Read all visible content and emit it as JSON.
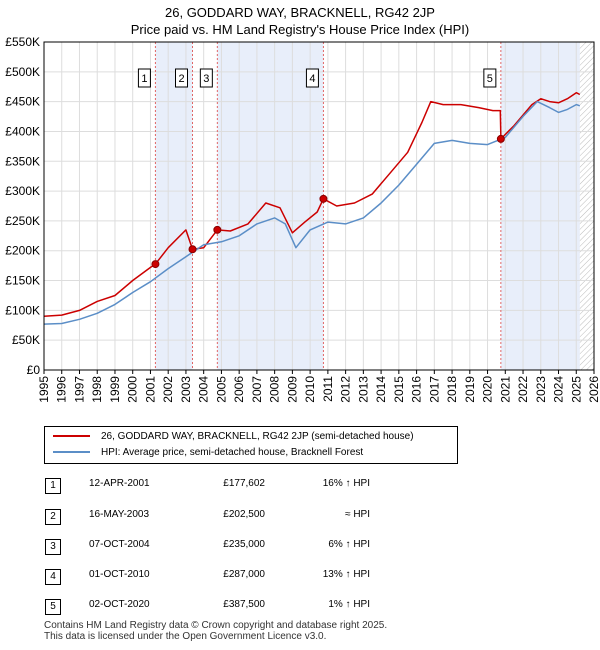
{
  "title_line1": "26, GODDARD WAY, BRACKNELL, RG42 2JP",
  "title_line2": "Price paid vs. HM Land Registry's House Price Index (HPI)",
  "colors": {
    "property": "#cc0000",
    "hpi": "#5b8ec7",
    "shade": "#e8eefa",
    "grid": "#dddddd"
  },
  "chart_data": {
    "type": "line",
    "xlim": [
      1995,
      2026
    ],
    "ylim": [
      0,
      550000
    ],
    "y_ticks": [
      0,
      50000,
      100000,
      150000,
      200000,
      250000,
      300000,
      350000,
      400000,
      450000,
      500000,
      550000
    ],
    "y_tick_labels": [
      "£0",
      "£50K",
      "£100K",
      "£150K",
      "£200K",
      "£250K",
      "£300K",
      "£350K",
      "£400K",
      "£450K",
      "£500K",
      "£550K"
    ],
    "x_ticks": [
      1995,
      1996,
      1997,
      1998,
      1999,
      2000,
      2001,
      2002,
      2003,
      2004,
      2005,
      2006,
      2007,
      2008,
      2009,
      2010,
      2011,
      2012,
      2013,
      2014,
      2015,
      2016,
      2017,
      2018,
      2019,
      2020,
      2021,
      2022,
      2023,
      2024,
      2025,
      2026
    ],
    "grid": true,
    "hatched_after": 2025.2,
    "shaded_ranges": [
      [
        2001.28,
        2003.37
      ],
      [
        2004.77,
        2010.75
      ],
      [
        2020.75,
        2025.2
      ]
    ],
    "series": [
      {
        "name": "26, GODDARD WAY, BRACKNELL, RG42 2JP (semi-detached house)",
        "color": "#cc0000",
        "points": [
          [
            1995.0,
            90000
          ],
          [
            1996.0,
            92000
          ],
          [
            1997.0,
            100000
          ],
          [
            1998.0,
            115000
          ],
          [
            1999.0,
            125000
          ],
          [
            2000.0,
            150000
          ],
          [
            2001.0,
            172000
          ],
          [
            2001.28,
            177602
          ],
          [
            2002.0,
            205000
          ],
          [
            2003.0,
            235000
          ],
          [
            2003.37,
            202500
          ],
          [
            2004.0,
            205000
          ],
          [
            2004.77,
            235000
          ],
          [
            2005.5,
            233000
          ],
          [
            2006.5,
            245000
          ],
          [
            2007.5,
            280000
          ],
          [
            2008.3,
            272000
          ],
          [
            2009.0,
            230000
          ],
          [
            2009.7,
            248000
          ],
          [
            2010.4,
            265000
          ],
          [
            2010.75,
            287000
          ],
          [
            2011.5,
            275000
          ],
          [
            2012.5,
            280000
          ],
          [
            2013.5,
            295000
          ],
          [
            2014.5,
            330000
          ],
          [
            2015.5,
            365000
          ],
          [
            2016.3,
            415000
          ],
          [
            2016.8,
            450000
          ],
          [
            2017.5,
            445000
          ],
          [
            2018.5,
            445000
          ],
          [
            2019.5,
            440000
          ],
          [
            2020.3,
            435000
          ],
          [
            2020.72,
            435000
          ],
          [
            2020.75,
            387500
          ],
          [
            2021.5,
            410000
          ],
          [
            2022.5,
            445000
          ],
          [
            2023.0,
            455000
          ],
          [
            2023.5,
            450000
          ],
          [
            2024.0,
            448000
          ],
          [
            2024.5,
            455000
          ],
          [
            2025.0,
            465000
          ],
          [
            2025.2,
            462000
          ]
        ]
      },
      {
        "name": "HPI: Average price, semi-detached house, Bracknell Forest",
        "color": "#5b8ec7",
        "points": [
          [
            1995.0,
            77000
          ],
          [
            1996.0,
            78000
          ],
          [
            1997.0,
            85000
          ],
          [
            1998.0,
            95000
          ],
          [
            1999.0,
            110000
          ],
          [
            2000.0,
            130000
          ],
          [
            2001.0,
            148000
          ],
          [
            2002.0,
            170000
          ],
          [
            2003.0,
            190000
          ],
          [
            2004.0,
            210000
          ],
          [
            2005.0,
            215000
          ],
          [
            2006.0,
            225000
          ],
          [
            2007.0,
            245000
          ],
          [
            2008.0,
            255000
          ],
          [
            2008.6,
            245000
          ],
          [
            2009.2,
            205000
          ],
          [
            2010.0,
            235000
          ],
          [
            2011.0,
            248000
          ],
          [
            2012.0,
            245000
          ],
          [
            2013.0,
            255000
          ],
          [
            2014.0,
            280000
          ],
          [
            2015.0,
            310000
          ],
          [
            2016.0,
            345000
          ],
          [
            2017.0,
            380000
          ],
          [
            2018.0,
            385000
          ],
          [
            2019.0,
            380000
          ],
          [
            2020.0,
            378000
          ],
          [
            2021.0,
            390000
          ],
          [
            2022.0,
            425000
          ],
          [
            2022.8,
            450000
          ],
          [
            2023.5,
            440000
          ],
          [
            2024.0,
            432000
          ],
          [
            2024.5,
            437000
          ],
          [
            2025.0,
            445000
          ],
          [
            2025.2,
            443000
          ]
        ]
      }
    ]
  },
  "sales": [
    {
      "num": "1",
      "x": 2001.28,
      "date": "12-APR-2001",
      "price_value": 177602,
      "price": "£177,602",
      "hpi_diff": "16% ↑ HPI"
    },
    {
      "num": "2",
      "x": 2003.37,
      "date": "16-MAY-2003",
      "price_value": 202500,
      "price": "£202,500",
      "hpi_diff": "≈ HPI"
    },
    {
      "num": "3",
      "x": 2004.77,
      "date": "07-OCT-2004",
      "price_value": 235000,
      "price": "£235,000",
      "hpi_diff": "6% ↑ HPI"
    },
    {
      "num": "4",
      "x": 2010.75,
      "date": "01-OCT-2010",
      "price_value": 287000,
      "price": "£287,000",
      "hpi_diff": "13% ↑ HPI"
    },
    {
      "num": "5",
      "x": 2020.75,
      "date": "02-OCT-2020",
      "price_value": 387500,
      "price": "£387,500",
      "hpi_diff": "1% ↑ HPI"
    }
  ],
  "legend": {
    "property_label": "26, GODDARD WAY, BRACKNELL, RG42 2JP (semi-detached house)",
    "hpi_label": "HPI: Average price, semi-detached house, Bracknell Forest"
  },
  "footer_line1": "Contains HM Land Registry data © Crown copyright and database right 2025.",
  "footer_line2": "This data is licensed under the Open Government Licence v3.0."
}
